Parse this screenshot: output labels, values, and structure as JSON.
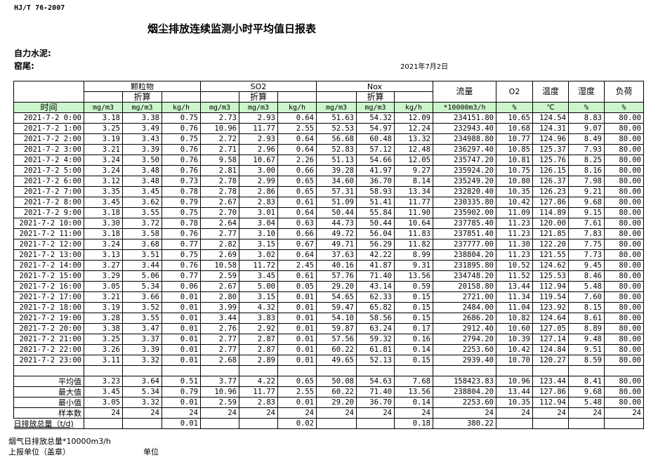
{
  "header": {
    "standard": "HJ/T  76-2007",
    "title": "烟尘排放连续监测小时平均值日报表",
    "company": "自力水泥:",
    "kiln": "窑尾:",
    "date": "2021年7月2日"
  },
  "columns": {
    "groups": {
      "particulate": "颗粒物",
      "so2": "SO2",
      "nox": "Nox",
      "flow": "流量",
      "o2": "O2",
      "temp": "温度",
      "humidity": "湿度",
      "load": "负荷"
    },
    "converted": "折算",
    "time": "时间",
    "units": [
      "mg/m3",
      "mg/m3",
      "kg/h",
      "mg/m3",
      "mg/m3",
      "kg/h",
      "mg/m3",
      "mg/m3",
      "kg/h",
      "*10000m3/h",
      "%",
      "℃",
      "%",
      "%"
    ]
  },
  "rows": [
    [
      "2021-7-2 0:00",
      "3.18",
      "3.38",
      "0.75",
      "2.73",
      "2.93",
      "0.64",
      "51.63",
      "54.32",
      "12.09",
      "234151.80",
      "10.65",
      "124.54",
      "8.83",
      "80.00"
    ],
    [
      "2021-7-2 1:00",
      "3.25",
      "3.49",
      "0.76",
      "10.96",
      "11.77",
      "2.55",
      "52.53",
      "54.97",
      "12.24",
      "232943.40",
      "10.68",
      "124.31",
      "9.07",
      "80.00"
    ],
    [
      "2021-7-2 2:00",
      "3.19",
      "3.43",
      "0.75",
      "2.72",
      "2.93",
      "0.64",
      "56.68",
      "60.48",
      "13.32",
      "234988.80",
      "10.77",
      "124.96",
      "8.49",
      "80.00"
    ],
    [
      "2021-7-2 3:00",
      "3.21",
      "3.39",
      "0.76",
      "2.71",
      "2.96",
      "0.64",
      "52.83",
      "57.12",
      "12.48",
      "236297.40",
      "10.85",
      "125.37",
      "7.93",
      "80.00"
    ],
    [
      "2021-7-2 4:00",
      "3.24",
      "3.50",
      "0.76",
      "9.58",
      "10.67",
      "2.26",
      "51.13",
      "54.66",
      "12.05",
      "235747.20",
      "10.81",
      "125.76",
      "8.25",
      "80.00"
    ],
    [
      "2021-7-2 5:00",
      "3.24",
      "3.48",
      "0.76",
      "2.81",
      "3.00",
      "0.66",
      "39.28",
      "41.97",
      "9.27",
      "235924.20",
      "10.75",
      "126.15",
      "8.16",
      "80.00"
    ],
    [
      "2021-7-2 6:00",
      "3.12",
      "3.48",
      "0.73",
      "2.78",
      "2.99",
      "0.65",
      "34.60",
      "36.70",
      "8.14",
      "235249.20",
      "10.80",
      "126.37",
      "7.98",
      "80.00"
    ],
    [
      "2021-7-2 7:00",
      "3.35",
      "3.45",
      "0.78",
      "2.78",
      "2.86",
      "0.65",
      "57.31",
      "58.93",
      "13.34",
      "232820.40",
      "10.35",
      "126.23",
      "9.21",
      "80.00"
    ],
    [
      "2021-7-2 8:00",
      "3.45",
      "3.62",
      "0.79",
      "2.67",
      "2.83",
      "0.61",
      "51.09",
      "51.41",
      "11.77",
      "230335.80",
      "10.42",
      "127.86",
      "9.68",
      "80.00"
    ],
    [
      "2021-7-2 9:00",
      "3.18",
      "3.55",
      "0.75",
      "2.70",
      "3.01",
      "0.64",
      "50.44",
      "55.84",
      "11.90",
      "235902.00",
      "11.09",
      "114.89",
      "9.15",
      "80.00"
    ],
    [
      "2021-7-2 10:00",
      "3.30",
      "3.72",
      "0.78",
      "2.64",
      "3.04",
      "0.63",
      "44.73",
      "50.44",
      "10.64",
      "237785.40",
      "11.23",
      "120.00",
      "7.61",
      "80.00"
    ],
    [
      "2021-7-2 11:00",
      "3.18",
      "3.58",
      "0.76",
      "2.77",
      "3.10",
      "0.66",
      "49.72",
      "56.04",
      "11.83",
      "237851.40",
      "11.23",
      "121.85",
      "7.83",
      "80.00"
    ],
    [
      "2021-7-2 12:00",
      "3.24",
      "3.68",
      "0.77",
      "2.82",
      "3.15",
      "0.67",
      "49.71",
      "56.29",
      "11.82",
      "237777.00",
      "11.30",
      "122.20",
      "7.75",
      "80.00"
    ],
    [
      "2021-7-2 13:00",
      "3.13",
      "3.51",
      "0.75",
      "2.69",
      "3.02",
      "0.64",
      "37.63",
      "42.22",
      "8.99",
      "238804.20",
      "11.23",
      "121.55",
      "7.73",
      "80.00"
    ],
    [
      "2021-7-2 14:00",
      "3.27",
      "3.44",
      "0.76",
      "10.58",
      "11.72",
      "2.45",
      "40.16",
      "41.87",
      "9.31",
      "231895.80",
      "10.52",
      "124.62",
      "9.45",
      "80.00"
    ],
    [
      "2021-7-2 15:00",
      "3.29",
      "5.06",
      "0.77",
      "2.59",
      "3.45",
      "0.61",
      "57.76",
      "71.40",
      "13.56",
      "234748.20",
      "11.52",
      "125.53",
      "8.46",
      "80.00"
    ],
    [
      "2021-7-2 16:00",
      "3.05",
      "5.34",
      "0.06",
      "2.67",
      "5.00",
      "0.05",
      "29.20",
      "43.14",
      "0.59",
      "20158.80",
      "13.44",
      "112.94",
      "5.48",
      "80.00"
    ],
    [
      "2021-7-2 17:00",
      "3.21",
      "3.66",
      "0.01",
      "2.80",
      "3.15",
      "0.01",
      "54.65",
      "62.33",
      "0.15",
      "2721.00",
      "11.34",
      "119.54",
      "7.60",
      "80.00"
    ],
    [
      "2021-7-2 18:00",
      "3.19",
      "3.52",
      "0.01",
      "3.99",
      "4.32",
      "0.01",
      "59.47",
      "65.82",
      "0.15",
      "2484.00",
      "11.04",
      "123.92",
      "8.15",
      "80.00"
    ],
    [
      "2021-7-2 19:00",
      "3.28",
      "3.55",
      "0.01",
      "3.44",
      "3.83",
      "0.01",
      "54.10",
      "58.56",
      "0.15",
      "2686.20",
      "10.82",
      "124.64",
      "8.61",
      "80.00"
    ],
    [
      "2021-7-2 20:00",
      "3.38",
      "3.47",
      "0.01",
      "2.76",
      "2.92",
      "0.01",
      "59.87",
      "63.24",
      "0.17",
      "2912.40",
      "10.60",
      "127.05",
      "8.89",
      "80.00"
    ],
    [
      "2021-7-2 21:00",
      "3.25",
      "3.37",
      "0.01",
      "2.77",
      "2.87",
      "0.01",
      "57.56",
      "59.32",
      "0.16",
      "2794.20",
      "10.39",
      "127.14",
      "9.48",
      "80.00"
    ],
    [
      "2021-7-2 22:00",
      "3.26",
      "3.39",
      "0.01",
      "2.77",
      "2.87",
      "0.01",
      "60.22",
      "61.81",
      "0.14",
      "2253.60",
      "10.42",
      "124.84",
      "9.51",
      "80.00"
    ],
    [
      "2021-7-2 23:00",
      "3.11",
      "3.32",
      "0.01",
      "2.68",
      "2.89",
      "0.01",
      "49.65",
      "52.13",
      "0.15",
      "2939.40",
      "10.70",
      "120.27",
      "8.59",
      "80.00"
    ]
  ],
  "stats": [
    [
      "平均值",
      "3.23",
      "3.64",
      "0.51",
      "3.77",
      "4.22",
      "0.65",
      "50.08",
      "54.63",
      "7.68",
      "158423.83",
      "10.96",
      "123.44",
      "8.41",
      "80.00"
    ],
    [
      "最大值",
      "3.45",
      "5.34",
      "0.79",
      "10.96",
      "11.77",
      "2.55",
      "60.22",
      "71.40",
      "13.56",
      "238804.20",
      "13.44",
      "127.86",
      "9.68",
      "80.00"
    ],
    [
      "最小值",
      "3.05",
      "3.32",
      "0.01",
      "2.59",
      "2.83",
      "0.01",
      "29.20",
      "36.70",
      "0.14",
      "2253.60",
      "10.35",
      "112.94",
      "5.48",
      "80.00"
    ],
    [
      "样本数",
      "24",
      "24",
      "24",
      "24",
      "24",
      "24",
      "24",
      "24",
      "24",
      "24",
      "24",
      "24",
      "24",
      "24"
    ],
    [
      "日排放总量（t/d)",
      "",
      "",
      "0.01",
      "",
      "",
      "0.02",
      "",
      "",
      "0.18",
      "380.22",
      "",
      "",
      "",
      ""
    ]
  ],
  "footer": {
    "flue_total": "烟气日排放总量*10000m3/h",
    "reporter": "上报单位（盖章）",
    "unit": "单位"
  },
  "colors": {
    "unit_row_bg": "#ccf5cc"
  }
}
